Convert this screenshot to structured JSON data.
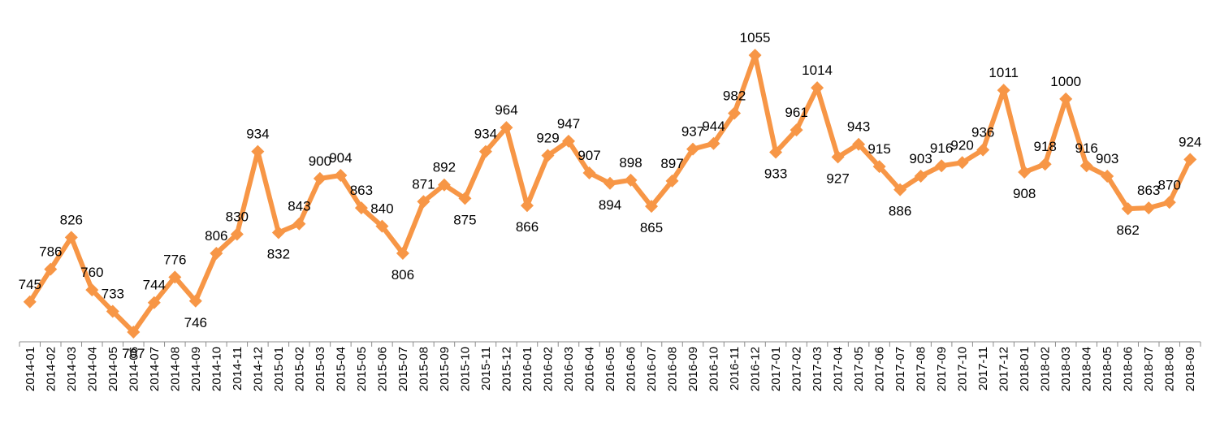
{
  "chart_data": {
    "type": "line",
    "title": "",
    "xlabel": "",
    "ylabel": "",
    "ylim": [
      690,
      1070
    ],
    "grid": false,
    "legend": "none",
    "x": [
      "2014-01",
      "2014-02",
      "2014-03",
      "2014-04",
      "2014-05",
      "2014-06",
      "2014-07",
      "2014-08",
      "2014-09",
      "2014-10",
      "2014-11",
      "2014-12",
      "2015-01",
      "2015-02",
      "2015-03",
      "2015-04",
      "2015-05",
      "2015-06",
      "2015-07",
      "2015-08",
      "2015-09",
      "2015-10",
      "2015-11",
      "2015-12",
      "2016-01",
      "2016-02",
      "2016-03",
      "2016-04",
      "2016-05",
      "2016-06",
      "2016-07",
      "2016-08",
      "2016-09",
      "2016-10",
      "2016-11",
      "2016-12",
      "2017-01",
      "2017-02",
      "2017-03",
      "2017-04",
      "2017-05",
      "2017-06",
      "2017-07",
      "2017-08",
      "2017-09",
      "2017-10",
      "2017-11",
      "2017-12",
      "2018-01",
      "2018-02",
      "2018-03",
      "2018-04",
      "2018-05",
      "2018-06",
      "2018-07",
      "2018-08",
      "2018-09"
    ],
    "series": [
      {
        "values": [
          745,
          786,
          826,
          760,
          733,
          707,
          744,
          776,
          746,
          806,
          830,
          934,
          832,
          843,
          900,
          904,
          863,
          840,
          806,
          871,
          892,
          875,
          934,
          964,
          866,
          929,
          947,
          907,
          894,
          898,
          865,
          897,
          937,
          944,
          982,
          1055,
          933,
          961,
          1014,
          927,
          943,
          915,
          886,
          903,
          916,
          920,
          936,
          1011,
          908,
          918,
          1000,
          916,
          903,
          862,
          863,
          870,
          924
        ],
        "color": "#F79646"
      }
    ]
  }
}
